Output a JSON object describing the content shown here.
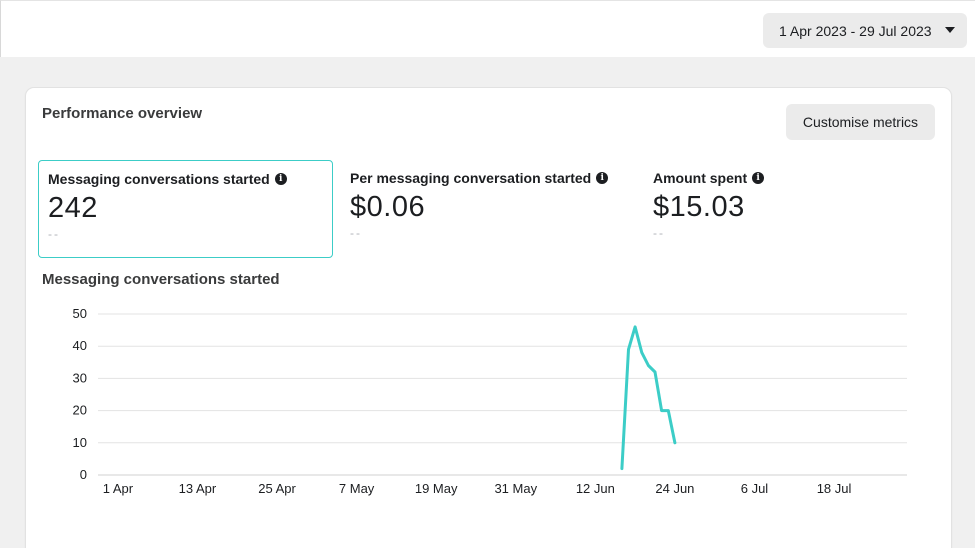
{
  "header": {
    "date_range": "1 Apr 2023 - 29 Jul 2023"
  },
  "performance": {
    "title": "Performance overview",
    "customise_label": "Customise metrics",
    "metrics": [
      {
        "label": "Messaging conversations started",
        "value": "242",
        "sub": "--"
      },
      {
        "label": "Per messaging conversation started",
        "value": "$0.06",
        "sub": "--"
      },
      {
        "label": "Amount spent",
        "value": "$15.03",
        "sub": "--"
      }
    ],
    "info_icon": "info-icon"
  },
  "chart_data": {
    "type": "line",
    "title": "Messaging conversations started",
    "xlabel": "",
    "ylabel": "",
    "ylim": [
      0,
      50
    ],
    "yticks": [
      0,
      10,
      20,
      30,
      40,
      50
    ],
    "xlim": [
      "2023-03-29",
      "2023-07-29"
    ],
    "xticks": [
      "1 Apr",
      "13 Apr",
      "25 Apr",
      "7 May",
      "19 May",
      "31 May",
      "12 Jun",
      "24 Jun",
      "6 Jul",
      "18 Jul"
    ],
    "xtick_dates": [
      "2023-04-01",
      "2023-04-13",
      "2023-04-25",
      "2023-05-07",
      "2023-05-19",
      "2023-05-31",
      "2023-06-12",
      "2023-06-24",
      "2023-07-06",
      "2023-07-18"
    ],
    "grid": true,
    "line_color": "#3ccdc7",
    "series": [
      {
        "x": [
          "2023-06-16",
          "2023-06-17",
          "2023-06-18",
          "2023-06-19",
          "2023-06-20",
          "2023-06-21",
          "2023-06-22",
          "2023-06-23",
          "2023-06-24"
        ],
        "y": [
          2,
          39,
          46,
          38,
          34,
          32,
          20,
          20,
          10
        ]
      }
    ]
  }
}
